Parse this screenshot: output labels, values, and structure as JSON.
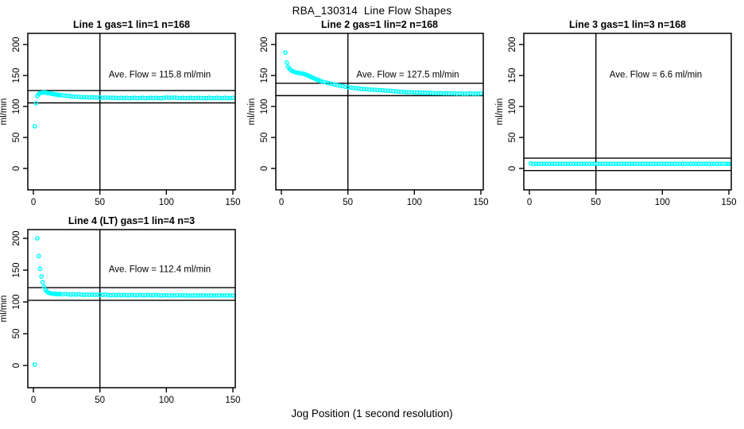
{
  "page": {
    "title": "RBA_130314  Line Flow Shapes",
    "xlabel": "Jog Position (1 second resolution)"
  },
  "colors": {
    "points": "#00ffff",
    "axis": "#000000",
    "background": "#ffffff"
  },
  "chart_data": [
    {
      "type": "scatter",
      "title": "Line 1 gas=1 lin=1 n=168",
      "annotation": "Ave. Flow =  115.8  ml/min",
      "ave_flow_ml_min": 115.8,
      "n": 168,
      "ylabel": "ml/min",
      "xticks": [
        0,
        50,
        100,
        150
      ],
      "yticks": [
        0,
        50,
        100,
        150,
        200
      ],
      "xlim": [
        -4.2,
        151.8
      ],
      "ylim": [
        -34.6,
        218
      ],
      "vline_x": 50,
      "hlines": [
        125.8,
        105.8
      ],
      "annotation_pos": {
        "x": 95,
        "y": 152
      },
      "points": [
        [
          1,
          68
        ],
        [
          2,
          105
        ],
        [
          3,
          117
        ],
        [
          4,
          120
        ],
        [
          5,
          121.5
        ],
        [
          6,
          122
        ],
        [
          7,
          122.5
        ],
        [
          8,
          122.5
        ],
        [
          9,
          122.5
        ],
        [
          10,
          122
        ],
        [
          11,
          121.5
        ],
        [
          12,
          121.5
        ],
        [
          13,
          121
        ],
        [
          14,
          120.5
        ],
        [
          15,
          120
        ],
        [
          16,
          119.5
        ],
        [
          17,
          119.5
        ],
        [
          18,
          119
        ],
        [
          19,
          118.5
        ],
        [
          20,
          118.5
        ],
        [
          22,
          118
        ],
        [
          24,
          117.5
        ],
        [
          26,
          117
        ],
        [
          28,
          116.5
        ],
        [
          30,
          116
        ],
        [
          32,
          115.5
        ],
        [
          34,
          115.5
        ],
        [
          36,
          115
        ],
        [
          38,
          115
        ],
        [
          40,
          115
        ],
        [
          42,
          114.5
        ],
        [
          44,
          115
        ],
        [
          46,
          114.5
        ],
        [
          48,
          114.5
        ],
        [
          50,
          114.5
        ],
        [
          52,
          114
        ],
        [
          54,
          114.5
        ],
        [
          56,
          114
        ],
        [
          58,
          114
        ],
        [
          60,
          114
        ],
        [
          62,
          114
        ],
        [
          64,
          113.5
        ],
        [
          66,
          114
        ],
        [
          68,
          113.5
        ],
        [
          70,
          114
        ],
        [
          72,
          113.5
        ],
        [
          74,
          113.5
        ],
        [
          76,
          114
        ],
        [
          78,
          113.5
        ],
        [
          80,
          113.5
        ],
        [
          82,
          114
        ],
        [
          84,
          113.5
        ],
        [
          86,
          113.5
        ],
        [
          88,
          114
        ],
        [
          90,
          113.5
        ],
        [
          92,
          114
        ],
        [
          94,
          113.5
        ],
        [
          96,
          113.5
        ],
        [
          98,
          114
        ],
        [
          100,
          114.5
        ],
        [
          102,
          114
        ],
        [
          104,
          114
        ],
        [
          106,
          114.5
        ],
        [
          108,
          114
        ],
        [
          110,
          113.5
        ],
        [
          112,
          114
        ],
        [
          114,
          113.5
        ],
        [
          116,
          113.5
        ],
        [
          118,
          114
        ],
        [
          120,
          113.5
        ],
        [
          122,
          113.5
        ],
        [
          124,
          114
        ],
        [
          126,
          113.5
        ],
        [
          128,
          113.5
        ],
        [
          130,
          113.5
        ],
        [
          132,
          114
        ],
        [
          134,
          113.5
        ],
        [
          136,
          113.5
        ],
        [
          138,
          114
        ],
        [
          140,
          113.5
        ],
        [
          142,
          113.5
        ],
        [
          144,
          114
        ],
        [
          146,
          113.5
        ],
        [
          148,
          113.5
        ],
        [
          150,
          114
        ]
      ]
    },
    {
      "type": "scatter",
      "title": "Line 2 gas=1 lin=2 n=168",
      "annotation": "Ave. Flow =  127.5  ml/min",
      "ave_flow_ml_min": 127.5,
      "n": 168,
      "ylabel": "ml/min",
      "xticks": [
        0,
        50,
        100,
        150
      ],
      "yticks": [
        0,
        50,
        100,
        150,
        200
      ],
      "xlim": [
        -4.2,
        151.8
      ],
      "ylim": [
        -34.6,
        218
      ],
      "vline_x": 50,
      "hlines": [
        137.5,
        117.5
      ],
      "annotation_pos": {
        "x": 95,
        "y": 152
      },
      "points": [
        [
          3,
          187
        ],
        [
          4,
          171
        ],
        [
          5,
          164
        ],
        [
          6,
          161
        ],
        [
          7,
          159
        ],
        [
          8,
          157.5
        ],
        [
          9,
          156.5
        ],
        [
          10,
          155.5
        ],
        [
          11,
          155
        ],
        [
          12,
          154.5
        ],
        [
          13,
          154
        ],
        [
          14,
          153.5
        ],
        [
          15,
          153.5
        ],
        [
          16,
          153
        ],
        [
          17,
          152.5
        ],
        [
          18,
          152
        ],
        [
          19,
          151
        ],
        [
          20,
          150
        ],
        [
          21,
          149
        ],
        [
          22,
          148
        ],
        [
          23,
          147
        ],
        [
          24,
          146
        ],
        [
          25,
          145
        ],
        [
          26,
          144
        ],
        [
          27,
          143
        ],
        [
          28,
          142.5
        ],
        [
          29,
          141.5
        ],
        [
          30,
          140.5
        ],
        [
          32,
          139.5
        ],
        [
          34,
          138.5
        ],
        [
          36,
          137.5
        ],
        [
          38,
          136.5
        ],
        [
          40,
          135.5
        ],
        [
          42,
          134.5
        ],
        [
          44,
          133.5
        ],
        [
          46,
          133
        ],
        [
          48,
          132
        ],
        [
          50,
          131
        ],
        [
          52,
          130.5
        ],
        [
          54,
          130
        ],
        [
          56,
          129.5
        ],
        [
          58,
          129
        ],
        [
          60,
          128.5
        ],
        [
          62,
          128
        ],
        [
          64,
          128
        ],
        [
          66,
          127.5
        ],
        [
          68,
          127
        ],
        [
          70,
          127
        ],
        [
          72,
          126.5
        ],
        [
          74,
          126.5
        ],
        [
          76,
          126
        ],
        [
          78,
          125.5
        ],
        [
          80,
          125.5
        ],
        [
          82,
          125
        ],
        [
          84,
          124.5
        ],
        [
          86,
          124.5
        ],
        [
          88,
          124
        ],
        [
          90,
          123.5
        ],
        [
          92,
          123.5
        ],
        [
          94,
          123
        ],
        [
          96,
          123
        ],
        [
          98,
          123
        ],
        [
          100,
          122.5
        ],
        [
          102,
          122.5
        ],
        [
          104,
          122.5
        ],
        [
          106,
          122
        ],
        [
          108,
          122
        ],
        [
          110,
          122
        ],
        [
          112,
          122
        ],
        [
          114,
          121.5
        ],
        [
          116,
          121.5
        ],
        [
          118,
          121.5
        ],
        [
          120,
          121.5
        ],
        [
          122,
          121
        ],
        [
          124,
          121
        ],
        [
          126,
          121
        ],
        [
          128,
          121
        ],
        [
          130,
          121
        ],
        [
          132,
          120.5
        ],
        [
          134,
          121
        ],
        [
          136,
          120.5
        ],
        [
          138,
          120.5
        ],
        [
          140,
          120.5
        ],
        [
          142,
          121
        ],
        [
          144,
          120.5
        ],
        [
          146,
          120.5
        ],
        [
          148,
          120.5
        ],
        [
          150,
          121
        ]
      ]
    },
    {
      "type": "scatter",
      "title": "Line 3 gas=1 lin=3 n=168",
      "annotation": "Ave. Flow =  6.6  ml/min",
      "ave_flow_ml_min": 6.6,
      "n": 168,
      "ylabel": "ml/min",
      "xticks": [
        0,
        50,
        100,
        150
      ],
      "yticks": [
        0,
        50,
        100,
        150,
        200
      ],
      "xlim": [
        -4.2,
        151.8
      ],
      "ylim": [
        -34.6,
        218
      ],
      "vline_x": 50,
      "hlines": [
        16.6,
        -3.4
      ],
      "annotation_pos": {
        "x": 95,
        "y": 152
      },
      "points": [
        [
          1,
          8
        ],
        [
          3,
          7.5
        ],
        [
          5,
          7.6
        ],
        [
          7,
          7.4
        ],
        [
          9,
          7.5
        ],
        [
          11,
          7.7
        ],
        [
          13,
          7.4
        ],
        [
          15,
          7.5
        ],
        [
          17,
          7.6
        ],
        [
          19,
          7.4
        ],
        [
          21,
          7.5
        ],
        [
          23,
          7.6
        ],
        [
          25,
          7.4
        ],
        [
          27,
          7.5
        ],
        [
          29,
          7.7
        ],
        [
          31,
          7.4
        ],
        [
          33,
          7.5
        ],
        [
          35,
          7.6
        ],
        [
          37,
          7.4
        ],
        [
          39,
          7.5
        ],
        [
          41,
          7.6
        ],
        [
          43,
          7.5
        ],
        [
          45,
          7.4
        ],
        [
          47,
          7.6
        ],
        [
          49,
          7.5
        ],
        [
          51,
          7.4
        ],
        [
          53,
          7.6
        ],
        [
          55,
          7.5
        ],
        [
          57,
          7.4
        ],
        [
          59,
          7.6
        ],
        [
          61,
          7.5
        ],
        [
          63,
          7.4
        ],
        [
          65,
          7.6
        ],
        [
          67,
          7.5
        ],
        [
          69,
          7.4
        ],
        [
          71,
          7.6
        ],
        [
          73,
          7.5
        ],
        [
          75,
          7.4
        ],
        [
          77,
          7.6
        ],
        [
          79,
          7.5
        ],
        [
          81,
          7.4
        ],
        [
          83,
          7.6
        ],
        [
          85,
          7.5
        ],
        [
          87,
          7.4
        ],
        [
          89,
          7.6
        ],
        [
          91,
          7.5
        ],
        [
          93,
          7.4
        ],
        [
          95,
          7.6
        ],
        [
          97,
          7.5
        ],
        [
          99,
          7.4
        ],
        [
          101,
          7.6
        ],
        [
          103,
          7.5
        ],
        [
          105,
          7.4
        ],
        [
          107,
          7.6
        ],
        [
          109,
          7.5
        ],
        [
          111,
          7.4
        ],
        [
          113,
          7.6
        ],
        [
          115,
          7.5
        ],
        [
          117,
          7.4
        ],
        [
          119,
          7.6
        ],
        [
          121,
          7.5
        ],
        [
          123,
          7.4
        ],
        [
          125,
          7.6
        ],
        [
          127,
          7.5
        ],
        [
          129,
          7.4
        ],
        [
          131,
          7.6
        ],
        [
          133,
          7.5
        ],
        [
          135,
          7.4
        ],
        [
          137,
          7.6
        ],
        [
          139,
          7.5
        ],
        [
          141,
          7.4
        ],
        [
          143,
          7.6
        ],
        [
          145,
          7.5
        ],
        [
          147,
          7.4
        ],
        [
          149,
          7.5
        ],
        [
          150,
          7.5
        ]
      ]
    },
    {
      "type": "scatter",
      "title": "Line 4 (LT) gas=1 lin=4 n=3",
      "annotation": "Ave. Flow =  112.4  ml/min",
      "ave_flow_ml_min": 112.4,
      "n": 3,
      "ylabel": "ml/min",
      "xticks": [
        0,
        50,
        100,
        150
      ],
      "yticks": [
        0,
        50,
        100,
        150,
        200
      ],
      "xlim": [
        -4.2,
        151.8
      ],
      "ylim": [
        -35,
        213.8
      ],
      "vline_x": 50,
      "hlines": [
        122.4,
        102.4
      ],
      "annotation_pos": {
        "x": 95,
        "y": 152
      },
      "points": [
        [
          1,
          1.5
        ],
        [
          3,
          200
        ],
        [
          4,
          172
        ],
        [
          5,
          152
        ],
        [
          6,
          140
        ],
        [
          7,
          131
        ],
        [
          8,
          124
        ],
        [
          9,
          119
        ],
        [
          10,
          116.5
        ],
        [
          11,
          115
        ],
        [
          12,
          114
        ],
        [
          13,
          113.5
        ],
        [
          14,
          113
        ],
        [
          15,
          113
        ],
        [
          16,
          112.5
        ],
        [
          17,
          112.5
        ],
        [
          18,
          112.5
        ],
        [
          19,
          112
        ],
        [
          20,
          112.5
        ],
        [
          22,
          112
        ],
        [
          24,
          112.5
        ],
        [
          26,
          112
        ],
        [
          28,
          111.5
        ],
        [
          30,
          112
        ],
        [
          32,
          111.5
        ],
        [
          34,
          112
        ],
        [
          36,
          111.5
        ],
        [
          38,
          111
        ],
        [
          40,
          111.5
        ],
        [
          42,
          111
        ],
        [
          44,
          111.5
        ],
        [
          46,
          111
        ],
        [
          48,
          111.5
        ],
        [
          50,
          111
        ],
        [
          52,
          111
        ],
        [
          54,
          111.5
        ],
        [
          56,
          111
        ],
        [
          58,
          110.5
        ],
        [
          60,
          111
        ],
        [
          62,
          110.5
        ],
        [
          64,
          111
        ],
        [
          66,
          110.5
        ],
        [
          68,
          111
        ],
        [
          70,
          110.5
        ],
        [
          72,
          110.5
        ],
        [
          74,
          111
        ],
        [
          76,
          110.5
        ],
        [
          78,
          110.5
        ],
        [
          80,
          111
        ],
        [
          82,
          110.5
        ],
        [
          84,
          110.5
        ],
        [
          86,
          111
        ],
        [
          88,
          110.5
        ],
        [
          90,
          110.5
        ],
        [
          92,
          111
        ],
        [
          94,
          110.5
        ],
        [
          96,
          110
        ],
        [
          98,
          110.5
        ],
        [
          100,
          110.5
        ],
        [
          102,
          110
        ],
        [
          104,
          110.5
        ],
        [
          106,
          110
        ],
        [
          108,
          110.5
        ],
        [
          110,
          110
        ],
        [
          112,
          110.5
        ],
        [
          114,
          110
        ],
        [
          116,
          110.5
        ],
        [
          118,
          110
        ],
        [
          120,
          110
        ],
        [
          122,
          110.5
        ],
        [
          124,
          110
        ],
        [
          126,
          110
        ],
        [
          128,
          110.5
        ],
        [
          130,
          110
        ],
        [
          132,
          110
        ],
        [
          134,
          110.5
        ],
        [
          136,
          110
        ],
        [
          138,
          110
        ],
        [
          140,
          110.5
        ],
        [
          142,
          110
        ],
        [
          144,
          110
        ],
        [
          146,
          110.5
        ],
        [
          148,
          110
        ],
        [
          150,
          110
        ]
      ]
    }
  ]
}
